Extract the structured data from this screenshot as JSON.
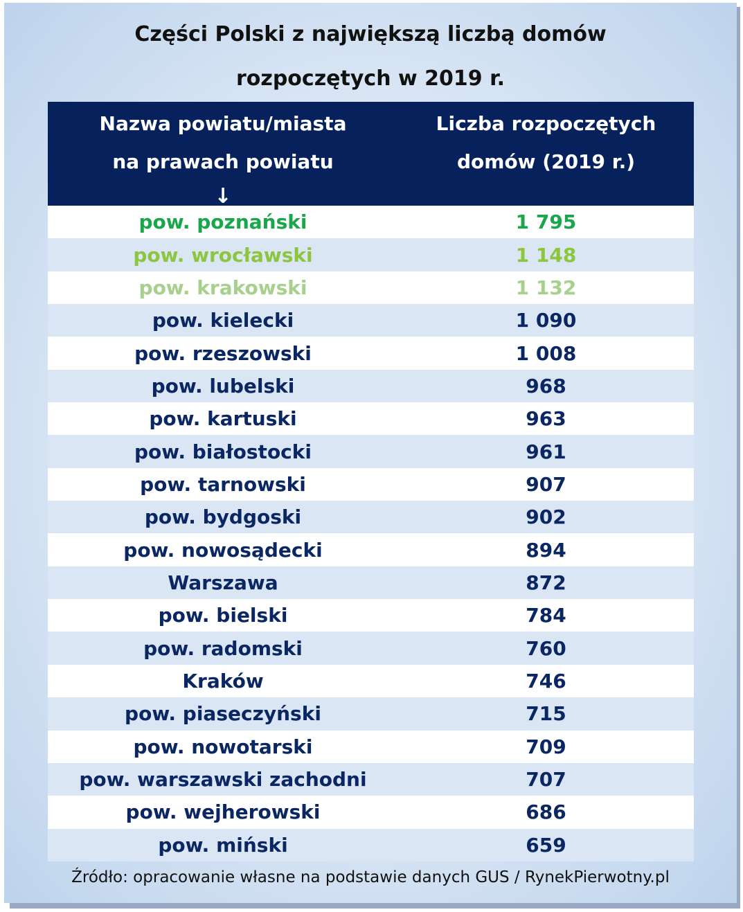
{
  "chart_data": {
    "type": "table",
    "title_lines": [
      "Części Polski z największą liczbą domów",
      "rozpoczętych w 2019 r."
    ],
    "columns": [
      {
        "lines": [
          "Nazwa powiatu/miasta",
          "na prawach powiatu"
        ],
        "arrow": "↓"
      },
      {
        "lines": [
          "Liczba rozpoczętych",
          "domów (2019 r.)"
        ]
      }
    ],
    "rows": [
      {
        "name": "pow. poznański",
        "value": "1 795",
        "color": "#1aa64b"
      },
      {
        "name": "pow. wrocławski",
        "value": "1 148",
        "color": "#8cc63f"
      },
      {
        "name": "pow. krakowski",
        "value": "1 132",
        "color": "#a7d08c"
      },
      {
        "name": "pow. kielecki",
        "value": "1 090"
      },
      {
        "name": "pow. rzeszowski",
        "value": "1 008"
      },
      {
        "name": "pow. lubelski",
        "value": "968"
      },
      {
        "name": "pow. kartuski",
        "value": "963"
      },
      {
        "name": "pow. białostocki",
        "value": "961"
      },
      {
        "name": "pow. tarnowski",
        "value": "907"
      },
      {
        "name": "pow. bydgoski",
        "value": "902"
      },
      {
        "name": "pow. nowosądecki",
        "value": "894"
      },
      {
        "name": "Warszawa",
        "value": "872"
      },
      {
        "name": "pow. bielski",
        "value": "784"
      },
      {
        "name": "pow. radomski",
        "value": "760"
      },
      {
        "name": "Kraków",
        "value": "746"
      },
      {
        "name": "pow. piaseczyński",
        "value": "715"
      },
      {
        "name": "pow. nowotarski",
        "value": "709"
      },
      {
        "name": "pow. warszawski zachodni",
        "value": "707"
      },
      {
        "name": "pow. wejherowski",
        "value": "686"
      },
      {
        "name": "pow. miński",
        "value": "659"
      }
    ],
    "default_text_color": "#0a2763",
    "header_background": "#06215b",
    "stripe_color": "#dae6f3"
  },
  "source": "Źródło: opracowanie własne na podstawie danych GUS / RynekPierwotny.pl"
}
